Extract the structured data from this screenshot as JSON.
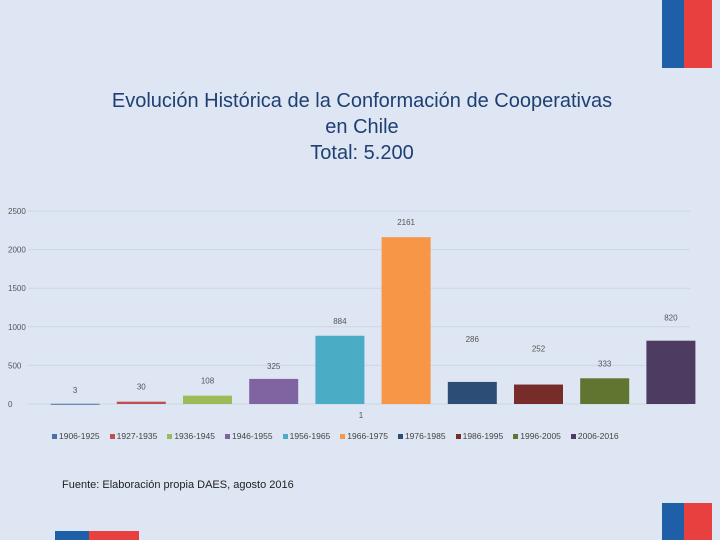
{
  "title_lines": [
    "Evolución Histórica de la Conformación de Cooperativas",
    "en Chile",
    "Total: 5.200"
  ],
  "source": "Fuente: Elaboración propia DAES, agosto 2016",
  "brand_colors": {
    "blue": "#1f5fa8",
    "red": "#e8403f"
  },
  "chart_data": {
    "type": "bar",
    "title": "Evolución Histórica de la Conformación de Cooperativas en Chile Total: 5.200",
    "categories": [
      "1906-1925",
      "1927-1935",
      "1936-1945",
      "1946-1955",
      "1956-1965",
      "1966-1975",
      "1976-1985",
      "1986-1995",
      "1996-2005",
      "2006-2016"
    ],
    "values": [
      3,
      30,
      108,
      325,
      884,
      2161,
      286,
      252,
      333,
      820
    ],
    "data_labels": [
      "3",
      "30",
      "108",
      "325",
      "884",
      "2161",
      "286",
      "252",
      "333",
      "820"
    ],
    "stray_label": "1",
    "colors": [
      "#4a6fa5",
      "#c0504d",
      "#9bbb59",
      "#8064a2",
      "#4bacc6",
      "#f79646",
      "#2c4d75",
      "#772c2a",
      "#5f7530",
      "#4d3b62"
    ],
    "yticks": [
      0,
      500,
      1000,
      1500,
      2000,
      2500
    ],
    "ylim": [
      0,
      2500
    ],
    "xlabel": "",
    "ylabel": "",
    "legend_position": "bottom"
  }
}
